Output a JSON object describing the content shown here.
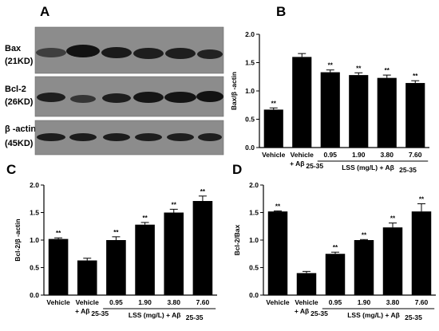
{
  "blot": {
    "panel": "A",
    "rows": [
      {
        "name": "Bax",
        "size": "(21KD)"
      },
      {
        "name": "Bcl-2",
        "size": "(26KD)"
      },
      {
        "name": "β -actin",
        "size": "(45KD)"
      }
    ]
  },
  "chart_data": [
    {
      "panel": "B",
      "type": "bar",
      "ylabel": "Bax/β -actin",
      "ylim": [
        0,
        2.0
      ],
      "yticks": [
        "0.0",
        "0.5",
        "1.0",
        "1.5",
        "2.0"
      ],
      "categories": [
        "Vehicle",
        "Vehicle + Aβ 25-35",
        "0.95",
        "1.90",
        "3.80",
        "7.60"
      ],
      "category_lines": [
        [
          "Vehicle"
        ],
        [
          "Vehicle",
          "+ Aβ",
          "25-35"
        ],
        [
          "0.95"
        ],
        [
          "1.90"
        ],
        [
          "3.80"
        ],
        [
          "7.60"
        ]
      ],
      "group_label": {
        "text": "LSS (mg/L) + Aβ",
        "sub": "25-35"
      },
      "values": [
        0.67,
        1.6,
        1.33,
        1.28,
        1.23,
        1.14
      ],
      "errors": [
        0.03,
        0.06,
        0.04,
        0.04,
        0.05,
        0.04
      ],
      "significance": [
        "**",
        "",
        "**",
        "**",
        "**",
        "**"
      ]
    },
    {
      "panel": "C",
      "type": "bar",
      "ylabel": "Bcl-2/β -actin",
      "ylim": [
        0,
        2.0
      ],
      "yticks": [
        "0.0",
        "0.5",
        "1.0",
        "1.5",
        "2.0"
      ],
      "categories": [
        "Vehicle",
        "Vehicle + Aβ 25-35",
        "0.95",
        "1.90",
        "3.80",
        "7.60"
      ],
      "category_lines": [
        [
          "Vehicle"
        ],
        [
          "Vehicle",
          "+ Aβ",
          "25-35"
        ],
        [
          "0.95"
        ],
        [
          "1.90"
        ],
        [
          "3.80"
        ],
        [
          "7.60"
        ]
      ],
      "group_label": {
        "text": "LSS (mg/L) + Aβ",
        "sub": "25-35"
      },
      "values": [
        1.02,
        0.63,
        1.0,
        1.28,
        1.5,
        1.71
      ],
      "errors": [
        0.02,
        0.04,
        0.06,
        0.04,
        0.06,
        0.09
      ],
      "significance": [
        "**",
        "",
        "**",
        "**",
        "**",
        "**"
      ]
    },
    {
      "panel": "D",
      "type": "bar",
      "ylabel": "Bcl-2/Bax",
      "ylim": [
        0,
        2.0
      ],
      "yticks": [
        "0.0",
        "0.5",
        "1.0",
        "1.5",
        "2.0"
      ],
      "categories": [
        "Vehicle",
        "Vehicle + Aβ 25-35",
        "0.95",
        "1.90",
        "3.80",
        "7.60"
      ],
      "category_lines": [
        [
          "Vehicle"
        ],
        [
          "Vehicle",
          "+ Aβ",
          "25-35"
        ],
        [
          "0.95"
        ],
        [
          "1.90"
        ],
        [
          "3.80"
        ],
        [
          "7.60"
        ]
      ],
      "group_label": {
        "text": "LSS (mg/L) + Aβ",
        "sub": "25-35"
      },
      "values": [
        1.52,
        0.4,
        0.75,
        1.0,
        1.23,
        1.52
      ],
      "errors": [
        0.01,
        0.03,
        0.03,
        0.01,
        0.08,
        0.14
      ],
      "significance": [
        "**",
        "",
        "**",
        "**",
        "**",
        "**"
      ]
    }
  ]
}
